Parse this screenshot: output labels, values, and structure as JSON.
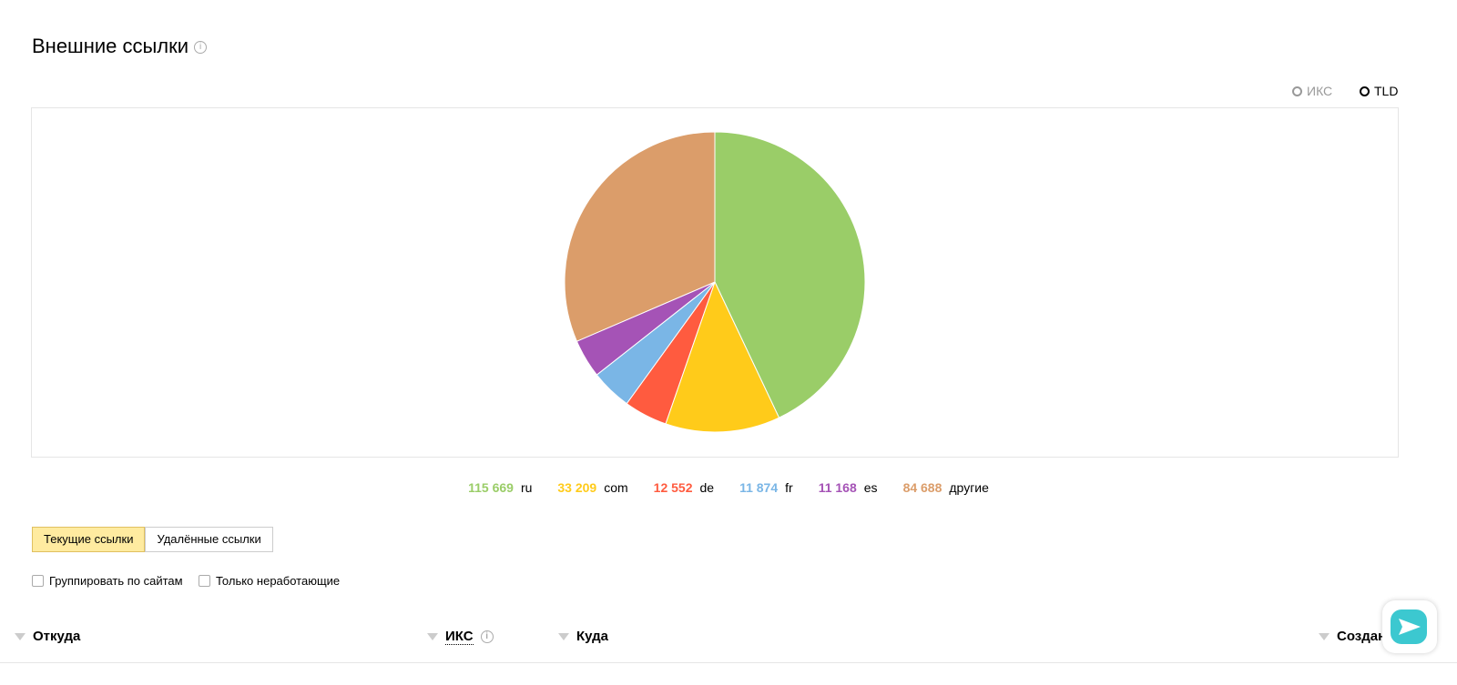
{
  "header": {
    "title": "Внешние ссылки"
  },
  "view_switch": [
    "ИКС",
    "TLD"
  ],
  "chart_data": {
    "type": "pie",
    "categories": [
      "ru",
      "com",
      "de",
      "fr",
      "es",
      "другие"
    ],
    "values": [
      115669,
      33209,
      12552,
      11874,
      11168,
      84688
    ],
    "value_labels": [
      "115 669",
      "33 209",
      "12 552",
      "11 874",
      "11 168",
      "84 688"
    ],
    "colors": [
      "#9acd68",
      "#ffcb1a",
      "#ff5b3f",
      "#7ab6e6",
      "#a553b6",
      "#db9d6a"
    ]
  },
  "tabs": [
    "Текущие ссылки",
    "Удалённые ссылки"
  ],
  "checkboxes": [
    "Группировать по сайтам",
    "Только неработающие"
  ],
  "table": {
    "columns": [
      "Откуда",
      "ИКС",
      "Куда",
      "Создан"
    ]
  }
}
